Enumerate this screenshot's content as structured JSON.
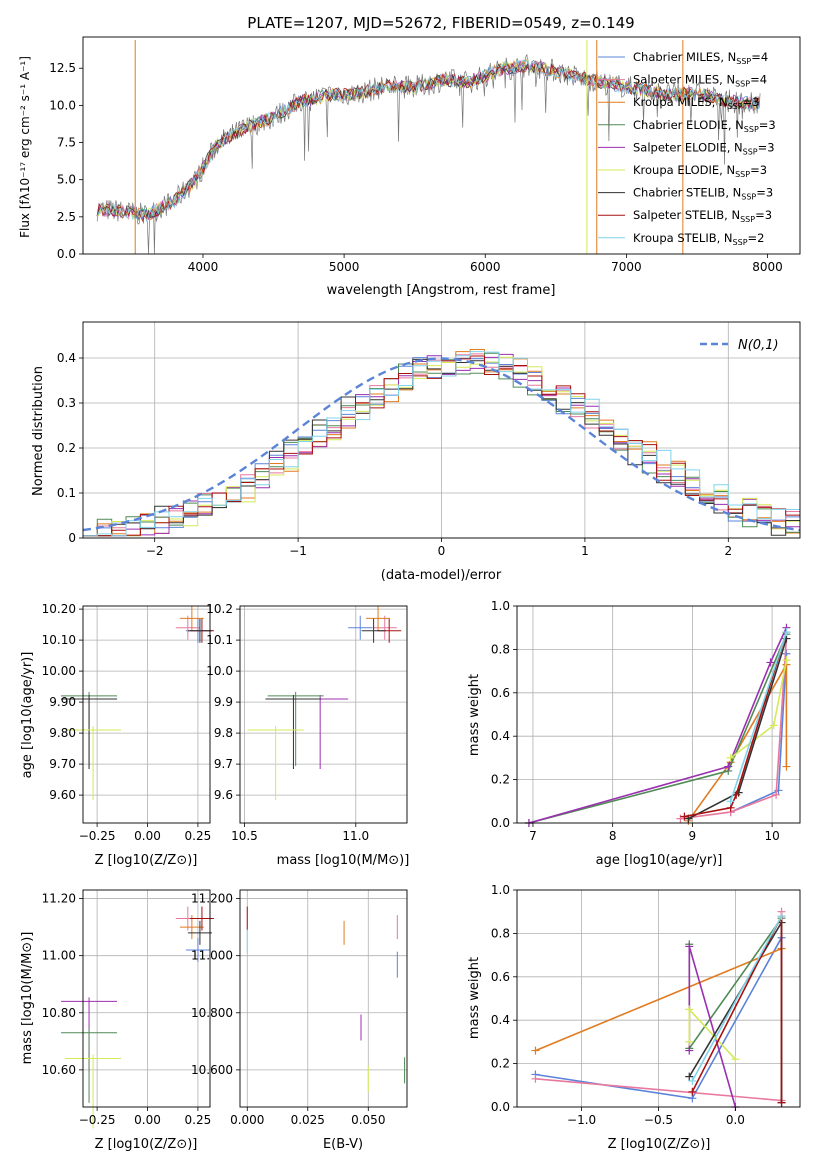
{
  "chart_data": [
    {
      "id": "spectrum",
      "type": "line",
      "title": "PLATE=1207, MJD=52672, FIBERID=0549, z=0.149",
      "xlabel": "wavelength [Angstrom, rest frame]",
      "ylabel": "Flux [fλ10⁻¹⁷ erg cm⁻² s⁻¹ A⁻¹]",
      "xlim": [
        3150,
        8230
      ],
      "ylim": [
        0,
        14.6
      ],
      "xticks": [
        4000,
        5000,
        6000,
        7000,
        8000
      ],
      "yticks": [
        0.0,
        2.5,
        5.0,
        7.5,
        10.0,
        12.5
      ],
      "legend_position": "top-right",
      "data_envelope": {
        "x": [
          3250,
          3400,
          3600,
          3800,
          3950,
          4100,
          4300,
          4500,
          4700,
          4900,
          5100,
          5300,
          5500,
          5700,
          5900,
          6100,
          6300,
          6500,
          6700,
          6900,
          7100,
          7300,
          7500,
          7700,
          7900
        ],
        "y": [
          3.0,
          2.9,
          2.6,
          3.6,
          5.0,
          7.4,
          8.5,
          9.2,
          10.3,
          10.7,
          10.8,
          11.3,
          11.2,
          11.7,
          11.6,
          12.4,
          12.7,
          12.3,
          11.8,
          11.4,
          11.1,
          10.7,
          10.8,
          10.3,
          10.1
        ]
      },
      "series": [
        {
          "name": "Chabrier MILES, N_SSP=4",
          "color": "#5b84d9"
        },
        {
          "name": "Salpeter MILES, N_SSP=4",
          "color": "#e8789d"
        },
        {
          "name": "Kroupa MILES, N_SSP=3",
          "color": "#e07b20"
        },
        {
          "name": "Chabrier ELODIE, N_SSP=3",
          "color": "#4f8a55"
        },
        {
          "name": "Salpeter ELODIE, N_SSP=3",
          "color": "#9b2fb0"
        },
        {
          "name": "Kroupa ELODIE, N_SSP=3",
          "color": "#d4ea57"
        },
        {
          "name": "Chabrier STELIB, N_SSP=3",
          "color": "#333333"
        },
        {
          "name": "Salpeter STELIB, N_SSP=3",
          "color": "#a81010"
        },
        {
          "name": "Kroupa STELIB, N_SSP=2",
          "color": "#7fd4ec"
        }
      ]
    },
    {
      "id": "residuals",
      "type": "line",
      "xlabel": "(data-model)/error",
      "ylabel": "Normed distribution",
      "xlim": [
        -2.5,
        2.5
      ],
      "ylim": [
        0,
        0.48
      ],
      "xticks": [
        -2,
        -1,
        0,
        1,
        2
      ],
      "yticks": [
        0.0,
        0.1,
        0.2,
        0.3,
        0.4
      ],
      "grid": true,
      "legend": "N(0,1)",
      "legend_position": "top-right",
      "normal_color": "#5b84d9"
    },
    {
      "id": "Z-age",
      "type": "scatter",
      "xlabel": "Z [log10(Z/Z⊙)]",
      "ylabel": "age  [log10(age/yr)]",
      "xlim": [
        -0.32,
        0.31
      ],
      "ylim": [
        9.51,
        10.21
      ],
      "xticks": [
        -0.25,
        0.0,
        0.25
      ],
      "yticks": [
        9.6,
        9.7,
        9.8,
        9.9,
        10.0,
        10.1,
        10.2
      ],
      "grid": true,
      "points": [
        {
          "x": 0.25,
          "y": 10.13,
          "color": "#5b84d9"
        },
        {
          "x": 0.2,
          "y": 10.14,
          "color": "#e8789d"
        },
        {
          "x": 0.22,
          "y": 10.17,
          "color": "#e07b20"
        },
        {
          "x": 0.27,
          "y": 10.13,
          "color": "#a81010"
        },
        {
          "x": 0.26,
          "y": 10.13,
          "color": "#333333"
        },
        {
          "x": -0.29,
          "y": 9.91,
          "color": "#9b2fb0"
        },
        {
          "x": -0.29,
          "y": 9.92,
          "color": "#4f8a55"
        },
        {
          "x": -0.29,
          "y": 9.91,
          "color": "#333333"
        },
        {
          "x": -0.27,
          "y": 9.81,
          "color": "#d4ea57"
        }
      ]
    },
    {
      "id": "mass-age",
      "type": "scatter",
      "xlabel": "mass [log10(M/M⊙)]",
      "xlim": [
        10.48,
        11.23
      ],
      "ylim": [
        9.51,
        10.21
      ],
      "xticks": [
        10.5,
        11.0
      ],
      "yticks": [
        9.6,
        9.7,
        9.8,
        9.9,
        10.0,
        10.1,
        10.2
      ],
      "grid": true,
      "points": [
        {
          "x": 11.02,
          "y": 10.14,
          "color": "#5b84d9"
        },
        {
          "x": 11.13,
          "y": 10.14,
          "color": "#e8789d"
        },
        {
          "x": 11.1,
          "y": 10.17,
          "color": "#e07b20"
        },
        {
          "x": 11.15,
          "y": 10.13,
          "color": "#a81010"
        },
        {
          "x": 11.08,
          "y": 10.13,
          "color": "#333333"
        },
        {
          "x": 10.84,
          "y": 9.91,
          "color": "#9b2fb0"
        },
        {
          "x": 10.73,
          "y": 9.92,
          "color": "#4f8a55"
        },
        {
          "x": 10.72,
          "y": 9.91,
          "color": "#333333"
        },
        {
          "x": 10.64,
          "y": 9.81,
          "color": "#d4ea57"
        }
      ]
    },
    {
      "id": "age-weight",
      "type": "line",
      "xlabel": "age  [log10(age/yr)]",
      "ylabel": "mass weight",
      "xlim": [
        6.8,
        10.35
      ],
      "ylim": [
        0,
        1
      ],
      "xticks": [
        7,
        8,
        9,
        10
      ],
      "yticks": [
        0.0,
        0.2,
        0.4,
        0.6,
        0.8,
        1.0
      ],
      "grid": true,
      "series": [
        {
          "color": "#5b84d9",
          "x": [
            9.48,
            10.08,
            10.18
          ],
          "y": [
            0.05,
            0.15,
            0.78
          ]
        },
        {
          "color": "#e8789d",
          "x": [
            8.85,
            9.48,
            10.05,
            10.18
          ],
          "y": [
            0.02,
            0.05,
            0.13,
            0.85
          ]
        },
        {
          "color": "#e07b20",
          "x": [
            8.95,
            9.48,
            10.18,
            10.18
          ],
          "y": [
            0.01,
            0.28,
            0.73,
            0.26
          ]
        },
        {
          "color": "#4f8a55",
          "x": [
            6.95,
            9.45,
            10.18
          ],
          "y": [
            0.0,
            0.24,
            0.87
          ]
        },
        {
          "color": "#9b2fb0",
          "x": [
            6.95,
            9.45,
            9.98,
            10.18
          ],
          "y": [
            0.0,
            0.26,
            0.74,
            0.9
          ]
        },
        {
          "color": "#d4ea57",
          "x": [
            9.48,
            10.02,
            10.18
          ],
          "y": [
            0.3,
            0.45,
            0.75
          ]
        },
        {
          "color": "#333333",
          "x": [
            8.95,
            9.58,
            10.18
          ],
          "y": [
            0.02,
            0.14,
            0.85
          ]
        },
        {
          "color": "#a81010",
          "x": [
            8.9,
            9.48,
            9.55,
            10.18
          ],
          "y": [
            0.03,
            0.07,
            0.13,
            0.88
          ]
        },
        {
          "color": "#7fd4ec",
          "x": [
            9.48,
            10.18
          ],
          "y": [
            0.1,
            0.88
          ]
        }
      ]
    },
    {
      "id": "Z-mass",
      "type": "scatter",
      "xlabel": "Z [log10(Z/Z⊙)]",
      "ylabel": "mass [log10(M/M⊙)]",
      "xlim": [
        -0.32,
        0.31
      ],
      "ylim": [
        10.47,
        11.23
      ],
      "xticks": [
        -0.25,
        0.0,
        0.25
      ],
      "yticks": [
        10.6,
        10.8,
        11.0,
        11.2
      ],
      "grid": true,
      "points": [
        {
          "x": 0.25,
          "y": 11.02,
          "color": "#5b84d9"
        },
        {
          "x": 0.2,
          "y": 11.13,
          "color": "#e8789d"
        },
        {
          "x": 0.22,
          "y": 11.1,
          "color": "#e07b20"
        },
        {
          "x": 0.27,
          "y": 11.13,
          "color": "#a81010"
        },
        {
          "x": 0.26,
          "y": 11.08,
          "color": "#333333"
        },
        {
          "x": -0.29,
          "y": 10.84,
          "color": "#9b2fb0"
        },
        {
          "x": -0.29,
          "y": 10.73,
          "color": "#4f8a55"
        },
        {
          "x": -0.27,
          "y": 10.64,
          "color": "#d4ea57"
        }
      ]
    },
    {
      "id": "EBV-mass",
      "type": "scatter",
      "xlabel": "E(B-V)",
      "xlim": [
        -0.003,
        0.066
      ],
      "ylim": [
        10.47,
        11.23
      ],
      "xticks": [
        0.0,
        0.025,
        0.05
      ],
      "yticks": [
        10.6,
        10.8,
        11.0,
        11.2
      ],
      "grid": true,
      "points": [
        {
          "x": 0.0,
          "y": 11.13,
          "color": "#a81010"
        },
        {
          "x": 0.0,
          "y": 11.05,
          "color": "#7fd4ec"
        },
        {
          "x": 0.04,
          "y": 11.08,
          "color": "#e07b20"
        },
        {
          "x": 0.047,
          "y": 10.78,
          "color": "#9b2fb0"
        },
        {
          "x": 0.05,
          "y": 10.6,
          "color": "#d4ea57"
        },
        {
          "x": 0.062,
          "y": 11.1,
          "color": "#e8789d"
        },
        {
          "x": 0.062,
          "y": 11.0,
          "color": "#5b84d9"
        },
        {
          "x": 0.065,
          "y": 10.63,
          "color": "#4f8a55"
        }
      ]
    },
    {
      "id": "Z-weight",
      "type": "line",
      "xlabel": "Z [log10(Z/Z⊙)]",
      "ylabel": "mass weight",
      "xlim": [
        -1.42,
        0.42
      ],
      "ylim": [
        0,
        1
      ],
      "xticks": [
        -1.0,
        -0.5,
        0.0
      ],
      "yticks": [
        0.0,
        0.2,
        0.4,
        0.6,
        0.8,
        1.0
      ],
      "grid": true,
      "series": [
        {
          "color": "#5b84d9",
          "x": [
            -1.3,
            -0.28,
            0.3
          ],
          "y": [
            0.15,
            0.04,
            0.78
          ]
        },
        {
          "color": "#e8789d",
          "x": [
            -1.3,
            0.3,
            0.3
          ],
          "y": [
            0.13,
            0.03,
            0.9
          ]
        },
        {
          "color": "#e07b20",
          "x": [
            -1.3,
            0.3
          ],
          "y": [
            0.26,
            0.73
          ]
        },
        {
          "color": "#4f8a55",
          "x": [
            -0.3,
            -0.3,
            0.3
          ],
          "y": [
            0.75,
            0.27,
            0.87
          ]
        },
        {
          "color": "#9b2fb0",
          "x": [
            -0.3,
            -0.3,
            0.0
          ],
          "y": [
            0.26,
            0.74,
            0.0
          ]
        },
        {
          "color": "#d4ea57",
          "x": [
            -0.3,
            -0.3,
            0.0
          ],
          "y": [
            0.3,
            0.45,
            0.22
          ]
        },
        {
          "color": "#333333",
          "x": [
            -0.3,
            0.3,
            0.3
          ],
          "y": [
            0.14,
            0.85,
            0.02
          ]
        },
        {
          "color": "#a81010",
          "x": [
            -0.28,
            0.3,
            0.3
          ],
          "y": [
            0.07,
            0.88,
            0.02
          ]
        },
        {
          "color": "#7fd4ec",
          "x": [
            -0.28,
            0.3
          ],
          "y": [
            0.12,
            0.88
          ]
        }
      ]
    }
  ]
}
